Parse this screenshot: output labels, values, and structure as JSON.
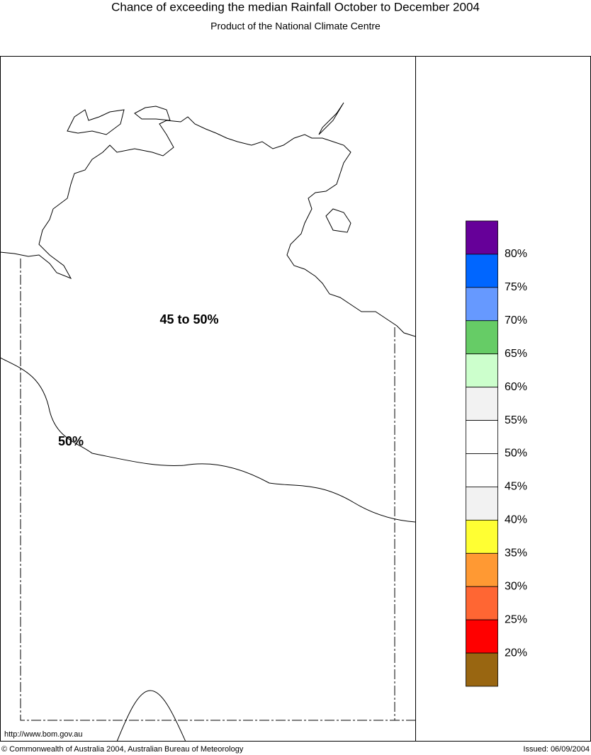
{
  "header": {
    "title": "Chance of exceeding the median Rainfall October to December 2004",
    "subtitle": "Product of the National Climate Centre"
  },
  "map": {
    "region_label": "45 to 50%",
    "contour_label": "50%"
  },
  "legend": {
    "colors": [
      "#660099",
      "#0066ff",
      "#6699ff",
      "#66cc66",
      "#ccffcc",
      "#f2f2f2",
      "#ffffff",
      "#ffffff",
      "#f2f2f2",
      "#ffff33",
      "#ff9933",
      "#ff6633",
      "#ff0000",
      "#996611"
    ],
    "labels": [
      "80%",
      "75%",
      "70%",
      "65%",
      "60%",
      "55%",
      "50%",
      "45%",
      "40%",
      "35%",
      "30%",
      "25%",
      "20%"
    ]
  },
  "footer": {
    "url": "http://www.bom.gov.au",
    "copyright": "© Commonwealth of Australia 2004, Australian Bureau of Meteorology",
    "issued": "Issued: 06/09/2004"
  }
}
